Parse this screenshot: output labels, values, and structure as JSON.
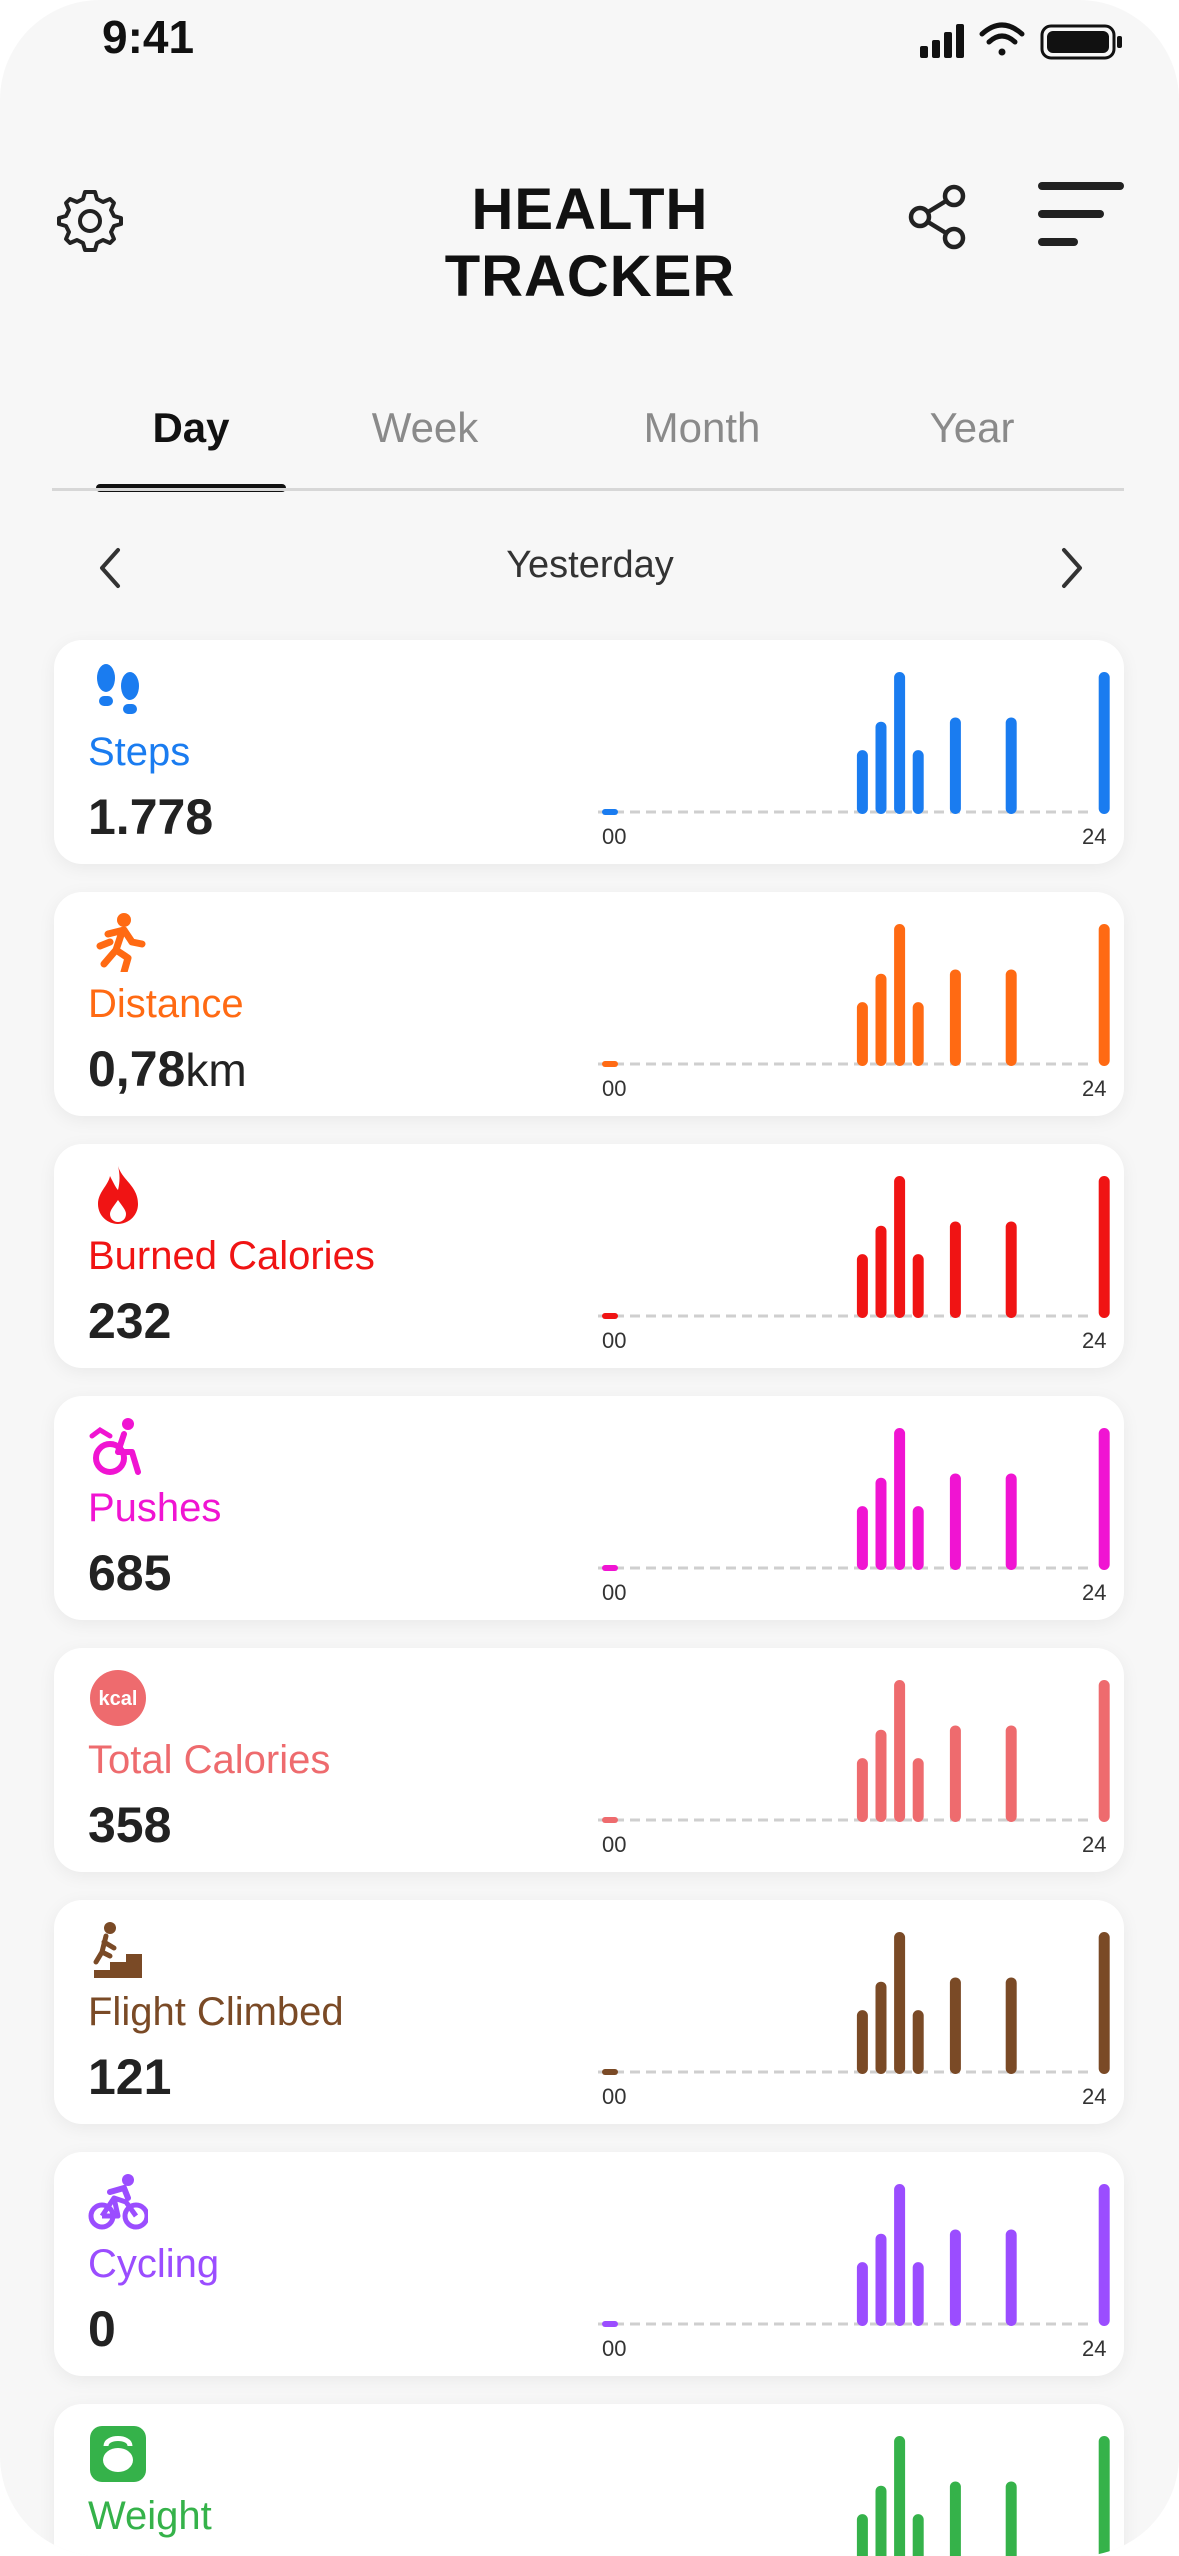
{
  "status": {
    "time": "9:41"
  },
  "header": {
    "title": "HEALTH TRACKER",
    "icons": {
      "settings": "gear-icon",
      "share": "share-icon",
      "menu": "menu-icon"
    }
  },
  "tabs": [
    {
      "label": "Day",
      "active": true
    },
    {
      "label": "Week",
      "active": false
    },
    {
      "label": "Month",
      "active": false
    },
    {
      "label": "Year",
      "active": false
    }
  ],
  "date_nav": {
    "label": "Yesterday"
  },
  "chart_data": {
    "type": "bar",
    "x_start_label": "00",
    "x_end_label": "24",
    "values_note_shape": "same hourly bar pattern on every card",
    "hourly_relative": [
      0.08,
      0.0,
      0.0,
      0.0,
      0.0,
      0.0,
      0.0,
      0.0,
      0.0,
      0.0,
      0.0,
      0.0,
      0.0,
      0.0,
      0.45,
      0.65,
      1.0,
      0.45,
      0.0,
      0.68,
      0.0,
      0.0,
      0.68,
      0.0,
      0.0,
      0.0,
      0.0,
      1.0,
      0.18,
      0.0
    ]
  },
  "cards": [
    {
      "id": "steps",
      "title": "Steps",
      "value": "1.778",
      "unit": "",
      "color": "#1a7cf0",
      "icon": "footsteps-icon"
    },
    {
      "id": "distance",
      "title": "Distance",
      "value": "0,78",
      "unit": "km",
      "color": "#ff6a13",
      "icon": "running-icon"
    },
    {
      "id": "burned",
      "title": "Burned Calories",
      "value": "232",
      "unit": "",
      "color": "#f01414",
      "icon": "flame-icon"
    },
    {
      "id": "pushes",
      "title": "Pushes",
      "value": "685",
      "unit": "",
      "color": "#f014d2",
      "icon": "wheelchair-icon"
    },
    {
      "id": "total",
      "title": "Total Calories",
      "value": "358",
      "unit": "",
      "color": "#ee6b6e",
      "icon": "kcal-icon"
    },
    {
      "id": "flights",
      "title": "Flight Climbed",
      "value": "121",
      "unit": "",
      "color": "#7a4a26",
      "icon": "stairs-icon"
    },
    {
      "id": "cycling",
      "title": "Cycling",
      "value": "0",
      "unit": "",
      "color": "#9b4dff",
      "icon": "bicycle-icon"
    },
    {
      "id": "weight",
      "title": "Weight",
      "value": "",
      "unit": "",
      "color": "#35b24a",
      "icon": "kettlebell-icon"
    }
  ],
  "kcal_label": "kcal"
}
